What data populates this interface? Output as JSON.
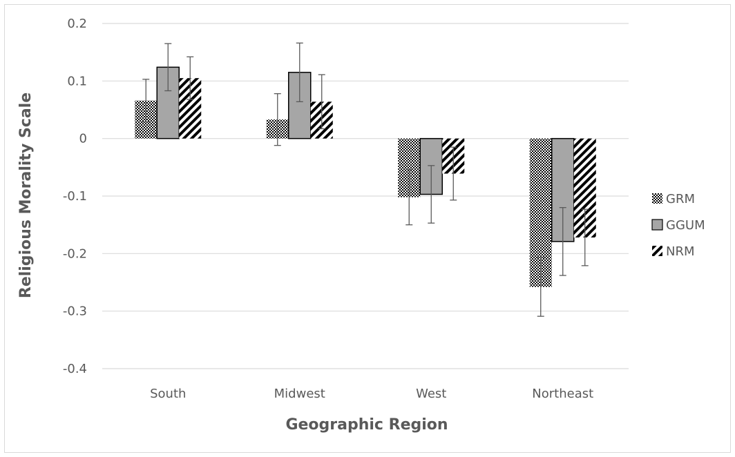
{
  "chart_data": {
    "type": "bar",
    "categories": [
      "South",
      "Midwest",
      "West",
      "Northeast"
    ],
    "series": [
      {
        "name": "GRM",
        "values": [
          0.066,
          0.033,
          -0.102,
          -0.258
        ],
        "error": [
          0.037,
          0.045,
          0.048,
          0.051
        ],
        "pattern": "checker"
      },
      {
        "name": "GGUM",
        "values": [
          0.124,
          0.115,
          -0.097,
          -0.179
        ],
        "error": [
          0.041,
          0.051,
          0.05,
          0.059
        ],
        "pattern": "solid"
      },
      {
        "name": "NRM",
        "values": [
          0.105,
          0.064,
          -0.061,
          -0.172
        ],
        "error": [
          0.037,
          0.047,
          0.046,
          0.049
        ],
        "pattern": "diagonal"
      }
    ],
    "xlabel": "Geographic Region",
    "ylabel": "Religious Morality Scale",
    "ylim": [
      -0.4,
      0.2
    ],
    "yticks": [
      "0.2",
      "0.1",
      "0",
      "-0.1",
      "-0.2",
      "-0.3",
      "-0.4"
    ],
    "ytick_values": [
      0.2,
      0.1,
      0,
      -0.1,
      -0.2,
      -0.3,
      -0.4
    ],
    "grid": true,
    "legend_position": "right",
    "colors": {
      "bar_fill": "#a6a6a6",
      "bar_stroke": "#000000",
      "grid": "#d9d9d9",
      "text": "#595959",
      "error": "#595959"
    }
  }
}
